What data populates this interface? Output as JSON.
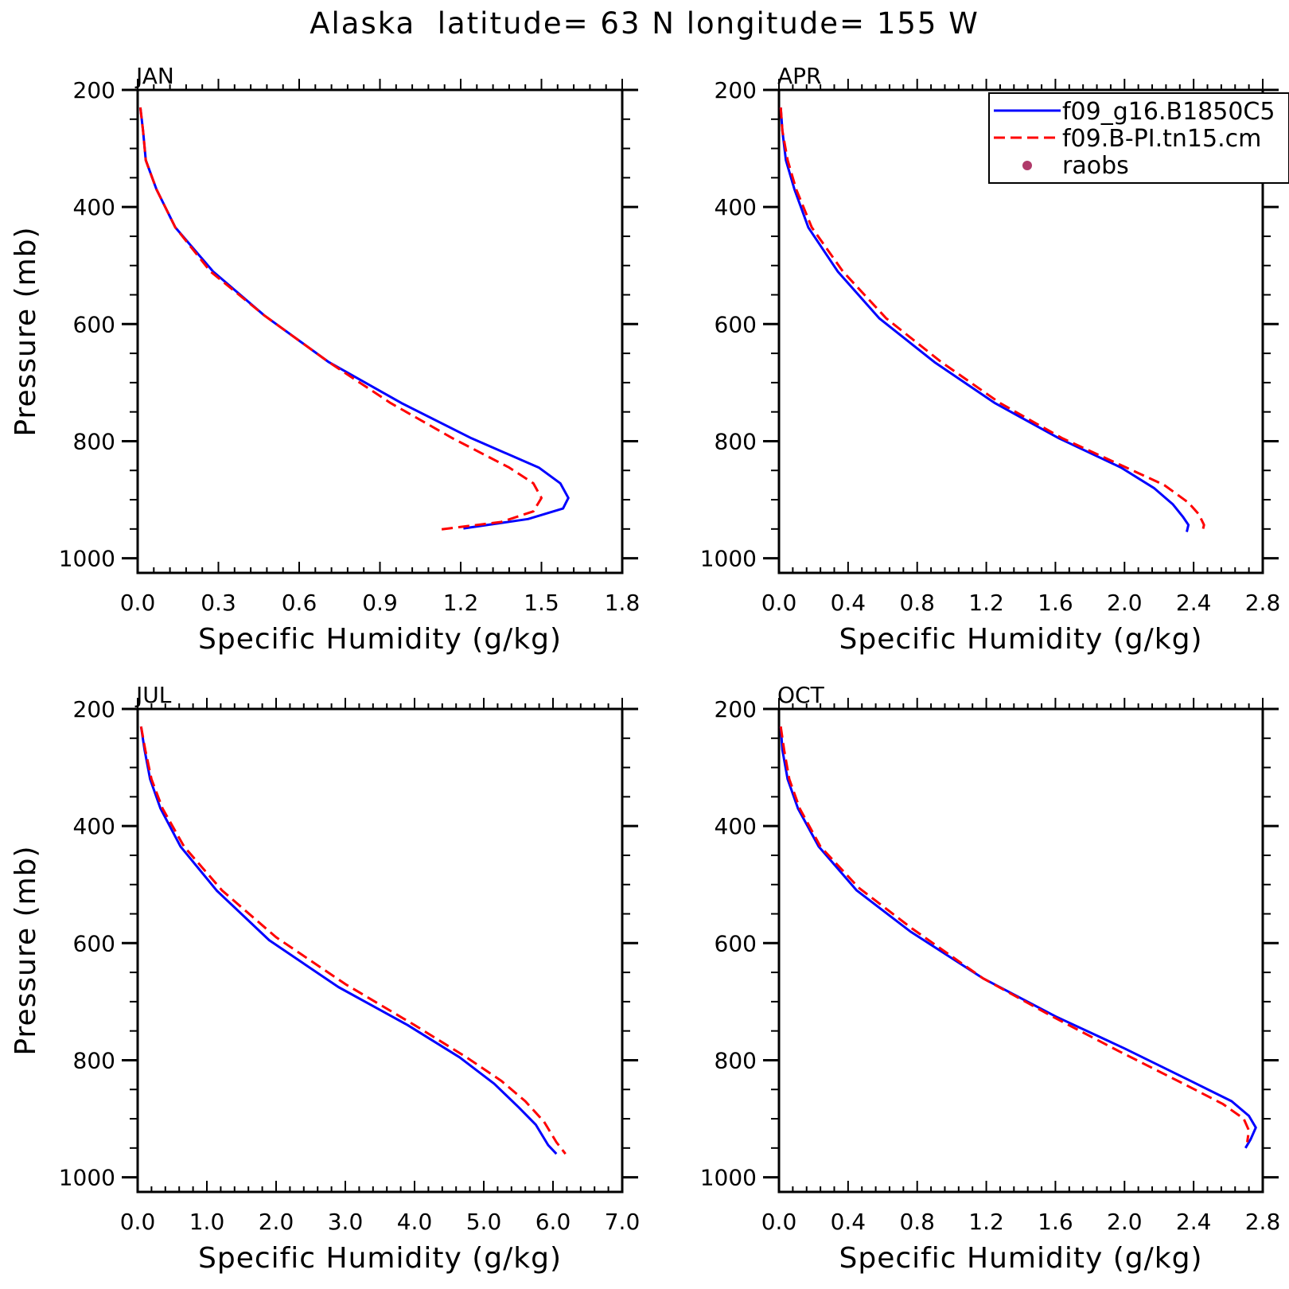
{
  "figure_title": "Alaska  latitude= 63 N longitude= 155 W",
  "legend": {
    "entries": [
      {
        "label": "f09_g16.B1850C5",
        "color": "#0000ff",
        "style": "solid"
      },
      {
        "label": "f09.B-PI.tn15.cm",
        "color": "#ff0000",
        "style": "dashed"
      },
      {
        "label": "raobs",
        "color": "#b03a6a",
        "style": "marker"
      }
    ]
  },
  "chart_data": [
    {
      "type": "line",
      "title": "JAN",
      "xlabel": "Specific Humidity (g/kg)",
      "ylabel": "Pressure (mb)",
      "xlim": [
        0.0,
        1.8
      ],
      "ylim": [
        200,
        1025
      ],
      "y_reversed": true,
      "xticks": [
        "0.0",
        "0.3",
        "0.6",
        "0.9",
        "1.2",
        "1.5",
        "1.8"
      ],
      "yticks": [
        "200",
        "400",
        "600",
        "800",
        "1000"
      ],
      "series": [
        {
          "name": "f09_g16.B1850C5",
          "color": "#0000ff",
          "style": "solid",
          "points": [
            [
              0.01,
              230
            ],
            [
              0.02,
              270
            ],
            [
              0.03,
              320
            ],
            [
              0.07,
              370
            ],
            [
              0.14,
              435
            ],
            [
              0.28,
              510
            ],
            [
              0.47,
              585
            ],
            [
              0.71,
              665
            ],
            [
              0.98,
              735
            ],
            [
              1.24,
              795
            ],
            [
              1.49,
              845
            ],
            [
              1.57,
              872
            ],
            [
              1.6,
              897
            ],
            [
              1.58,
              915
            ],
            [
              1.45,
              933
            ],
            [
              1.21,
              949
            ]
          ]
        },
        {
          "name": "f09.B-PI.tn15.cm",
          "color": "#ff0000",
          "style": "dashed",
          "points": [
            [
              0.01,
              230
            ],
            [
              0.02,
              270
            ],
            [
              0.03,
              320
            ],
            [
              0.07,
              370
            ],
            [
              0.14,
              435
            ],
            [
              0.27,
              510
            ],
            [
              0.47,
              585
            ],
            [
              0.71,
              665
            ],
            [
              0.94,
              735
            ],
            [
              1.17,
              795
            ],
            [
              1.38,
              845
            ],
            [
              1.47,
              872
            ],
            [
              1.5,
              897
            ],
            [
              1.47,
              920
            ],
            [
              1.35,
              938
            ],
            [
              1.12,
              951
            ]
          ]
        }
      ]
    },
    {
      "type": "line",
      "title": "APR",
      "xlabel": "Specific Humidity (g/kg)",
      "ylabel": "",
      "xlim": [
        0.0,
        2.8
      ],
      "ylim": [
        200,
        1025
      ],
      "y_reversed": true,
      "xticks": [
        "0.0",
        "0.4",
        "0.8",
        "1.2",
        "1.6",
        "2.0",
        "2.4",
        "2.8"
      ],
      "yticks": [
        "200",
        "400",
        "600",
        "800",
        "1000"
      ],
      "series": [
        {
          "name": "f09_g16.B1850C5",
          "color": "#0000ff",
          "style": "solid",
          "points": [
            [
              0.01,
              230
            ],
            [
              0.02,
              270
            ],
            [
              0.04,
              320
            ],
            [
              0.09,
              370
            ],
            [
              0.17,
              435
            ],
            [
              0.34,
              510
            ],
            [
              0.58,
              590
            ],
            [
              0.9,
              665
            ],
            [
              1.25,
              735
            ],
            [
              1.62,
              795
            ],
            [
              1.98,
              845
            ],
            [
              2.17,
              880
            ],
            [
              2.28,
              908
            ],
            [
              2.34,
              930
            ],
            [
              2.37,
              943
            ],
            [
              2.36,
              955
            ]
          ]
        },
        {
          "name": "f09.B-PI.tn15.cm",
          "color": "#ff0000",
          "style": "dashed",
          "points": [
            [
              0.01,
              230
            ],
            [
              0.02,
              270
            ],
            [
              0.05,
              320
            ],
            [
              0.1,
              370
            ],
            [
              0.19,
              435
            ],
            [
              0.37,
              510
            ],
            [
              0.62,
              590
            ],
            [
              0.94,
              665
            ],
            [
              1.28,
              735
            ],
            [
              1.64,
              795
            ],
            [
              2.01,
              845
            ],
            [
              2.23,
              875
            ],
            [
              2.37,
              905
            ],
            [
              2.43,
              925
            ],
            [
              2.46,
              943
            ],
            [
              2.45,
              955
            ]
          ]
        }
      ]
    },
    {
      "type": "line",
      "title": "JUL",
      "xlabel": "Specific Humidity (g/kg)",
      "ylabel": "Pressure (mb)",
      "xlim": [
        0.0,
        7.0
      ],
      "ylim": [
        200,
        1025
      ],
      "y_reversed": true,
      "xticks": [
        "0.0",
        "1.0",
        "2.0",
        "3.0",
        "4.0",
        "5.0",
        "6.0",
        "7.0"
      ],
      "yticks": [
        "200",
        "400",
        "600",
        "800",
        "1000"
      ],
      "series": [
        {
          "name": "f09_g16.B1850C5",
          "color": "#0000ff",
          "style": "solid",
          "points": [
            [
              0.05,
              230
            ],
            [
              0.1,
              270
            ],
            [
              0.18,
              320
            ],
            [
              0.33,
              370
            ],
            [
              0.62,
              435
            ],
            [
              1.14,
              510
            ],
            [
              1.9,
              595
            ],
            [
              2.9,
              675
            ],
            [
              3.9,
              740
            ],
            [
              4.65,
              795
            ],
            [
              5.15,
              840
            ],
            [
              5.5,
              880
            ],
            [
              5.75,
              910
            ],
            [
              5.93,
              945
            ],
            [
              6.05,
              960
            ]
          ]
        },
        {
          "name": "f09.B-PI.tn15.cm",
          "color": "#ff0000",
          "style": "dashed",
          "points": [
            [
              0.05,
              230
            ],
            [
              0.11,
              270
            ],
            [
              0.2,
              320
            ],
            [
              0.36,
              370
            ],
            [
              0.67,
              435
            ],
            [
              1.22,
              510
            ],
            [
              2.0,
              590
            ],
            [
              3.0,
              670
            ],
            [
              4.0,
              740
            ],
            [
              4.75,
              795
            ],
            [
              5.25,
              835
            ],
            [
              5.6,
              870
            ],
            [
              5.87,
              905
            ],
            [
              6.05,
              940
            ],
            [
              6.18,
              960
            ]
          ]
        }
      ]
    },
    {
      "type": "line",
      "title": "OCT",
      "xlabel": "Specific Humidity (g/kg)",
      "ylabel": "",
      "xlim": [
        0.0,
        2.8
      ],
      "ylim": [
        200,
        1025
      ],
      "y_reversed": true,
      "xticks": [
        "0.0",
        "0.4",
        "0.8",
        "1.2",
        "1.6",
        "2.0",
        "2.4",
        "2.8"
      ],
      "yticks": [
        "200",
        "400",
        "600",
        "800",
        "1000"
      ],
      "series": [
        {
          "name": "f09_g16.B1850C5",
          "color": "#0000ff",
          "style": "solid",
          "points": [
            [
              0.01,
              230
            ],
            [
              0.02,
              270
            ],
            [
              0.05,
              320
            ],
            [
              0.11,
              370
            ],
            [
              0.23,
              435
            ],
            [
              0.45,
              510
            ],
            [
              0.76,
              580
            ],
            [
              1.18,
              660
            ],
            [
              1.6,
              725
            ],
            [
              2.0,
              780
            ],
            [
              2.38,
              835
            ],
            [
              2.62,
              870
            ],
            [
              2.72,
              895
            ],
            [
              2.76,
              915
            ],
            [
              2.73,
              935
            ],
            [
              2.7,
              950
            ]
          ]
        },
        {
          "name": "f09.B-PI.tn15.cm",
          "color": "#ff0000",
          "style": "dashed",
          "points": [
            [
              0.01,
              230
            ],
            [
              0.03,
              270
            ],
            [
              0.06,
              320
            ],
            [
              0.12,
              370
            ],
            [
              0.24,
              435
            ],
            [
              0.46,
              505
            ],
            [
              0.77,
              575
            ],
            [
              1.18,
              660
            ],
            [
              1.58,
              725
            ],
            [
              1.97,
              785
            ],
            [
              2.34,
              840
            ],
            [
              2.57,
              875
            ],
            [
              2.69,
              900
            ],
            [
              2.72,
              920
            ],
            [
              2.71,
              940
            ]
          ]
        }
      ]
    }
  ]
}
